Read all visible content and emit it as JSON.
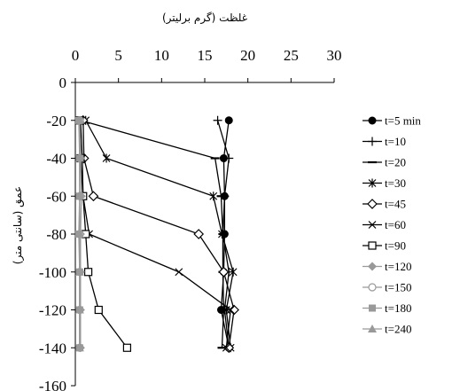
{
  "chart_data": {
    "type": "line",
    "xlabel": "غلظت (گرم برلیتر)",
    "ylabel": "عمق (سانتی متر)",
    "xlim": [
      0,
      30
    ],
    "ylim": [
      -160,
      0
    ],
    "x_ticks": [
      0,
      5,
      10,
      15,
      20,
      25,
      30
    ],
    "y_ticks": [
      0,
      -20,
      -40,
      -60,
      -80,
      -100,
      -120,
      -140,
      -160
    ],
    "x_axis_position": "top",
    "grid": false,
    "legend_position": "right",
    "series": [
      {
        "name": "t=5 min",
        "marker": "filled-circle",
        "color": "#000000",
        "x": [
          17.8,
          17.2,
          17.3,
          17.3,
          17.2,
          16.9,
          17.8
        ],
        "y": [
          -20,
          -40,
          -60,
          -80,
          -100,
          -120,
          -140
        ]
      },
      {
        "name": "t=10",
        "marker": "plus",
        "color": "#000000",
        "x": [
          16.5,
          17.8,
          17.3,
          17.1,
          17.8,
          17.3,
          17.8
        ],
        "y": [
          -20,
          -40,
          -60,
          -80,
          -100,
          -120,
          -140
        ]
      },
      {
        "name": "t=20",
        "marker": "dash",
        "color": "#000000",
        "x": [
          0.6,
          16.2,
          16.9,
          17.1,
          17.1,
          17.2,
          17.0
        ],
        "y": [
          -20,
          -40,
          -60,
          -80,
          -100,
          -120,
          -140
        ]
      },
      {
        "name": "t=30",
        "marker": "asterisk",
        "color": "#000000",
        "x": [
          1.2,
          3.6,
          16.0,
          17.0,
          18.3,
          17.5,
          18.0
        ],
        "y": [
          -20,
          -40,
          -60,
          -80,
          -100,
          -120,
          -140
        ]
      },
      {
        "name": "t=45",
        "marker": "open-diamond",
        "color": "#000000",
        "x": [
          0.9,
          1.0,
          2.1,
          14.3,
          17.2,
          18.4,
          17.8
        ],
        "y": [
          -20,
          -40,
          -60,
          -80,
          -100,
          -120,
          -140
        ]
      },
      {
        "name": "t=60",
        "marker": "x",
        "color": "#000000",
        "x": [
          0.6,
          0.8,
          0.9,
          1.6,
          12.0,
          18.0,
          17.5
        ],
        "y": [
          -20,
          -40,
          -60,
          -80,
          -100,
          -120,
          -140
        ]
      },
      {
        "name": "t=90",
        "marker": "open-square",
        "color": "#000000",
        "x": [
          0.5,
          0.6,
          0.9,
          1.2,
          1.5,
          2.7,
          6.0
        ],
        "y": [
          -20,
          -40,
          -60,
          -80,
          -100,
          -120,
          -140
        ]
      },
      {
        "name": "t=120",
        "marker": "filled-diamond",
        "color": "#999999",
        "x": [
          0.5,
          0.6,
          0.7,
          0.6,
          0.6,
          0.6,
          0.6
        ],
        "y": [
          -20,
          -40,
          -60,
          -80,
          -100,
          -120,
          -140
        ]
      },
      {
        "name": "t=150",
        "marker": "open-circle",
        "color": "#999999",
        "x": [
          0.5,
          0.5,
          0.5,
          0.5,
          0.5,
          0.5,
          0.5
        ],
        "y": [
          -20,
          -40,
          -60,
          -80,
          -100,
          -120,
          -140
        ]
      },
      {
        "name": "t=180",
        "marker": "filled-square",
        "color": "#999999",
        "x": [
          0.4,
          0.5,
          0.5,
          0.4,
          0.5,
          0.5,
          0.5
        ],
        "y": [
          -20,
          -40,
          -60,
          -80,
          -100,
          -120,
          -140
        ]
      },
      {
        "name": "t=240",
        "marker": "filled-triangle",
        "color": "#999999",
        "x": [
          0.5,
          0.5,
          0.5,
          0.5,
          0.5,
          0.5,
          0.5
        ],
        "y": [
          -20,
          -40,
          -60,
          -80,
          -100,
          -120,
          -140
        ]
      }
    ]
  }
}
